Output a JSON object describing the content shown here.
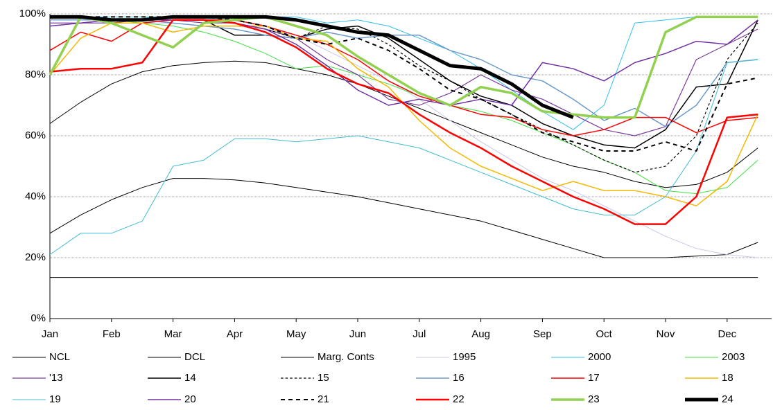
{
  "chart_data": {
    "type": "line",
    "categories": [
      "Jan",
      null,
      "Feb",
      null,
      "Mar",
      null,
      "Apr",
      null,
      "May",
      null,
      "Jun",
      null,
      "Jul",
      null,
      "Aug",
      null,
      "Sep",
      null,
      "Oct",
      null,
      "Nov",
      null,
      "Dec",
      null
    ],
    "ylim": [
      0,
      100
    ],
    "yticks": [
      {
        "value": 0,
        "label": "0%"
      },
      {
        "value": 20,
        "label": "20%"
      },
      {
        "value": 40,
        "label": "40%"
      },
      {
        "value": 60,
        "label": "60%"
      },
      {
        "value": 80,
        "label": "80%"
      },
      {
        "value": 100,
        "label": "100%"
      }
    ],
    "grid": true,
    "series": [
      {
        "name": "NCL",
        "color": "#000000",
        "width": 1,
        "dash": false,
        "values": [
          64,
          71,
          77,
          81,
          83,
          84,
          84.5,
          84,
          82,
          80,
          77,
          73,
          69,
          65,
          61,
          57,
          53,
          50,
          48,
          45,
          43,
          44,
          48,
          56
        ]
      },
      {
        "name": "DCL",
        "color": "#000000",
        "width": 1,
        "dash": false,
        "values": [
          28,
          34,
          39,
          43,
          46,
          46,
          45.5,
          44.5,
          43,
          41.5,
          40,
          38,
          36,
          34,
          32,
          29,
          26,
          23,
          20,
          20,
          20,
          20.5,
          21,
          25
        ]
      },
      {
        "name": "Marg. Conts",
        "color": "#000000",
        "width": 1,
        "dash": false,
        "values": [
          13.5,
          13.5,
          13.5,
          13.5,
          13.5,
          13.5,
          13.5,
          13.5,
          13.5,
          13.5,
          13.5,
          13.5,
          13.5,
          13.5,
          13.5,
          13.5,
          13.5,
          13.5,
          13.5,
          13.5,
          13.5,
          13.5,
          13.5,
          13.5
        ]
      },
      {
        "name": "1995",
        "color": "#c8c8e8",
        "width": 1,
        "dash": false,
        "values": [
          97,
          97,
          97,
          97,
          97,
          96,
          96,
          95,
          93,
          88,
          83,
          78,
          72,
          65,
          58,
          52,
          46,
          42,
          37,
          32,
          27,
          23,
          21,
          20
        ]
      },
      {
        "name": "2000",
        "color": "#30c0f0",
        "width": 1,
        "dash": false,
        "values": [
          99,
          99,
          99,
          99,
          99,
          99,
          99,
          99,
          99,
          97,
          98,
          96,
          92,
          88,
          82,
          75,
          68,
          62,
          70,
          97,
          98,
          99,
          99,
          99
        ]
      },
      {
        "name": "2003",
        "color": "#40e040",
        "width": 1,
        "dash": false,
        "values": [
          99,
          99,
          98,
          97,
          96,
          94,
          91,
          87,
          82,
          83,
          80,
          77,
          73,
          70,
          68,
          65,
          61,
          57,
          52,
          48,
          42,
          41,
          43,
          52
        ]
      },
      {
        "name": "'13",
        "color": "#7a3a9a",
        "width": 1.2,
        "dash": false,
        "values": [
          97,
          97,
          97,
          98,
          98,
          97,
          97,
          95,
          92,
          85,
          80,
          72,
          70,
          74,
          80,
          75,
          72,
          67,
          62,
          60,
          63,
          85,
          90,
          95
        ]
      },
      {
        "name": "14",
        "color": "#000000",
        "width": 1.5,
        "dash": false,
        "values": [
          98,
          98,
          98,
          98,
          98,
          98,
          93,
          93,
          92,
          95,
          96,
          92,
          85,
          78,
          73,
          70,
          64,
          60,
          57,
          56,
          62,
          76,
          77,
          98
        ]
      },
      {
        "name": "15",
        "color": "#000000",
        "width": 1.2,
        "dash": true,
        "values": [
          98,
          98,
          98,
          98,
          98,
          98,
          97,
          95,
          92,
          96,
          95,
          90,
          83,
          78,
          72,
          67,
          62,
          57,
          52,
          48,
          50,
          60,
          85,
          97
        ]
      },
      {
        "name": "16",
        "color": "#6c9ac8",
        "width": 1.5,
        "dash": false,
        "values": [
          98,
          98,
          98,
          98,
          97,
          96,
          95,
          93,
          92,
          94,
          92,
          93,
          93,
          88,
          85,
          80,
          78,
          72,
          65,
          69,
          63,
          70,
          84,
          85
        ]
      },
      {
        "name": "17",
        "color": "#ff0000",
        "width": 1.5,
        "dash": false,
        "values": [
          88,
          94,
          91,
          97,
          98,
          98,
          98,
          96,
          93,
          90,
          85,
          78,
          73,
          70,
          67,
          66,
          62,
          60,
          62,
          66,
          66,
          61,
          65,
          66
        ]
      },
      {
        "name": "18",
        "color": "#f5b800",
        "width": 1.5,
        "dash": false,
        "values": [
          80,
          92,
          97,
          97,
          94,
          96,
          96,
          96,
          92,
          91,
          82,
          76,
          65,
          56,
          50,
          46,
          42,
          45,
          42,
          42,
          40,
          37,
          45,
          67
        ]
      },
      {
        "name": "19",
        "color": "#40bcd0",
        "width": 1,
        "dash": false,
        "values": [
          21,
          28,
          28,
          32,
          50,
          52,
          59,
          59,
          58,
          59,
          60,
          58,
          56,
          52,
          48,
          44,
          40,
          36,
          34,
          34,
          40,
          55,
          84,
          85
        ]
      },
      {
        "name": "20",
        "color": "#7030a0",
        "width": 1.5,
        "dash": false,
        "values": [
          96,
          97,
          98,
          98,
          98,
          98,
          97,
          95,
          90,
          83,
          75,
          70,
          72,
          70,
          72,
          70,
          84,
          82,
          78,
          84,
          87,
          91,
          90,
          98
        ]
      },
      {
        "name": "21",
        "color": "#000000",
        "width": 2,
        "dash": true,
        "values": [
          99,
          99,
          99,
          99,
          99,
          99,
          98,
          96,
          92,
          90,
          92,
          88,
          82,
          75,
          72,
          67,
          61,
          58,
          55,
          55,
          58,
          55,
          77,
          79
        ]
      },
      {
        "name": "22",
        "color": "#ff0000",
        "width": 2.5,
        "dash": false,
        "values": [
          81,
          82,
          82,
          84,
          98,
          98,
          97,
          94,
          89,
          82,
          77,
          74,
          67,
          61,
          56,
          50,
          45,
          40,
          36,
          31,
          31,
          40,
          66,
          67
        ]
      },
      {
        "name": "23",
        "color": "#92d050",
        "width": 3.5,
        "dash": false,
        "values": [
          80,
          99,
          97,
          93,
          89,
          97,
          98,
          99,
          96,
          93,
          86,
          80,
          74,
          70,
          76,
          74,
          68,
          67,
          66,
          66,
          94,
          99,
          99,
          99
        ]
      },
      {
        "name": "24",
        "color": "#000000",
        "width": 5,
        "dash": false,
        "values": [
          99,
          99,
          98,
          98,
          99,
          99,
          99,
          99,
          98,
          96,
          94,
          93,
          88,
          83,
          82,
          77,
          70,
          66,
          null,
          null,
          null,
          null,
          null,
          null
        ]
      }
    ]
  }
}
